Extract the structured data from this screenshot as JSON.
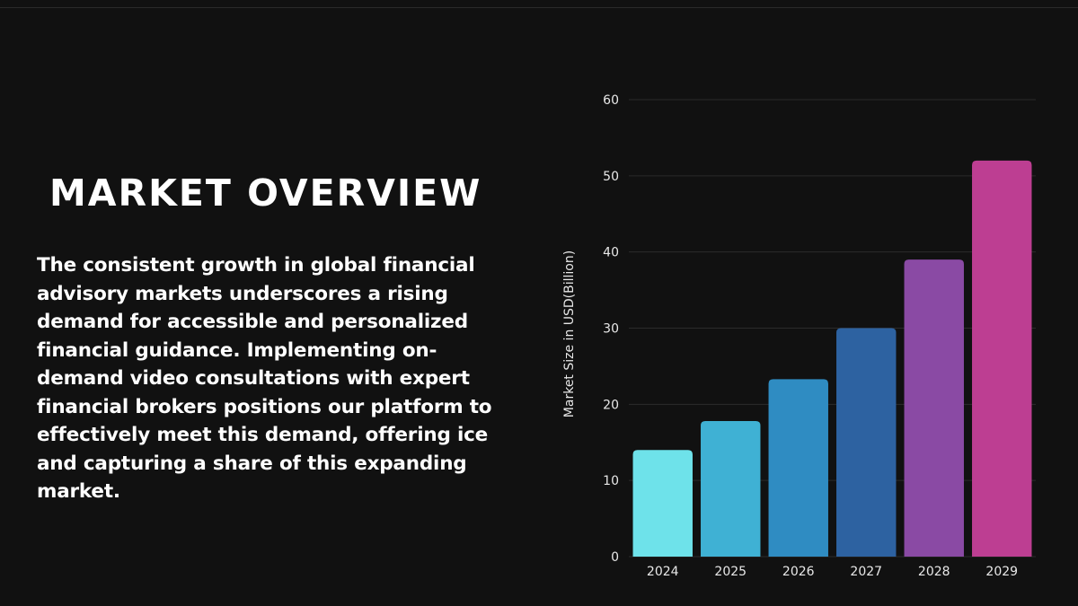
{
  "slide": {
    "title": "MARKET OVERVIEW",
    "body": "The consistent growth in global financial advisory markets underscores a rising demand for accessible and personalized financial guidance. Implementing on-demand video consultations with expert financial brokers positions our platform to effectively meet this demand, offering ice and capturing a share of this expanding market."
  },
  "chart_data": {
    "type": "bar",
    "categories": [
      "2024",
      "2025",
      "2026",
      "2027",
      "2028",
      "2029"
    ],
    "values": [
      14,
      17.8,
      23.3,
      30,
      39,
      52
    ],
    "ylabel": "Market Size in USD(Billion)",
    "xlabel": "",
    "ylim": [
      0,
      60
    ],
    "yticks": [
      0,
      10,
      20,
      30,
      40,
      50,
      60
    ],
    "grid": true,
    "bar_colors": [
      "#6ee2ea",
      "#3fb1d4",
      "#2f8cc2",
      "#2d62a1",
      "#8a4aa4",
      "#bd3e92"
    ],
    "background": "#111111"
  }
}
